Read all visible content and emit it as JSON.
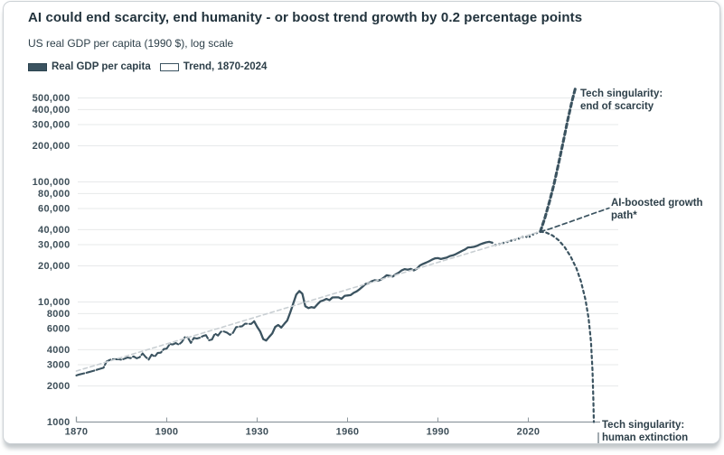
{
  "header": {
    "title": "AI could end scarcity, end humanity - or boost trend growth by 0.2 percentage points",
    "subtitle": "US real GDP per capita (1990 $), log scale"
  },
  "legend": {
    "items": [
      {
        "label": "Real GDP per capita",
        "swatch": "filled",
        "color": "#3b5360"
      },
      {
        "label": "Trend, 1870-2024",
        "swatch": "outlined",
        "color": "#3b5360"
      }
    ]
  },
  "annotations": {
    "scarcity": {
      "line1": "Tech singularity:",
      "line2": "end of scarcity"
    },
    "ai": {
      "line1": "AI-boosted growth",
      "line2": "path*"
    },
    "extinction": {
      "line1": "Tech singularity:",
      "line2": "human extinction"
    }
  },
  "chart_data": {
    "type": "line",
    "title": "AI could end scarcity, end humanity - or boost trend growth by 0.2 percentage points",
    "xlabel": "",
    "ylabel": "US real GDP per capita (1990 $), log scale",
    "y_scale": "log",
    "grid": true,
    "y_axis": {
      "range": [
        1000,
        500000
      ],
      "ticks": [
        {
          "label": "500,000",
          "value": 500000
        },
        {
          "label": "400,000",
          "value": 400000
        },
        {
          "label": "300,000",
          "value": 300000
        },
        {
          "label": "200,000",
          "value": 200000
        },
        {
          "label": "100,000",
          "value": 100000
        },
        {
          "label": "80,000",
          "value": 80000
        },
        {
          "label": "60,000",
          "value": 60000
        },
        {
          "label": "40,000",
          "value": 40000
        },
        {
          "label": "30,000",
          "value": 30000
        },
        {
          "label": "20,000",
          "value": 20000
        },
        {
          "label": "10,000",
          "value": 10000
        },
        {
          "label": "8000",
          "value": 8000
        },
        {
          "label": "6000",
          "value": 6000
        },
        {
          "label": "4000",
          "value": 4000
        },
        {
          "label": "3000",
          "value": 3000
        },
        {
          "label": "2000",
          "value": 2000
        },
        {
          "label": "1000",
          "value": 1000
        }
      ]
    },
    "x_axis": {
      "range": [
        1870,
        2044
      ],
      "ticks": [
        1870,
        1900,
        1930,
        1960,
        1990,
        2020
      ]
    },
    "series": [
      {
        "name": "Real GDP per capita (1870-1929)",
        "style": "s-main-early",
        "points": [
          [
            1870,
            2445
          ],
          [
            1871,
            2489
          ],
          [
            1872,
            2524
          ],
          [
            1873,
            2562
          ],
          [
            1874,
            2601
          ],
          [
            1875,
            2643
          ],
          [
            1876,
            2686
          ],
          [
            1877,
            2732
          ],
          [
            1878,
            2780
          ],
          [
            1879,
            2829
          ],
          [
            1880,
            3184
          ],
          [
            1881,
            3287
          ],
          [
            1882,
            3336
          ],
          [
            1883,
            3338
          ],
          [
            1884,
            3338
          ],
          [
            1885,
            3300
          ],
          [
            1886,
            3374
          ],
          [
            1887,
            3448
          ],
          [
            1888,
            3405
          ],
          [
            1889,
            3523
          ],
          [
            1890,
            3392
          ],
          [
            1891,
            3467
          ],
          [
            1892,
            3728
          ],
          [
            1893,
            3478
          ],
          [
            1894,
            3314
          ],
          [
            1895,
            3644
          ],
          [
            1896,
            3504
          ],
          [
            1897,
            3769
          ],
          [
            1898,
            3780
          ],
          [
            1899,
            4051
          ],
          [
            1900,
            4091
          ],
          [
            1901,
            4464
          ],
          [
            1902,
            4421
          ],
          [
            1903,
            4551
          ],
          [
            1904,
            4410
          ],
          [
            1905,
            4642
          ],
          [
            1906,
            5079
          ],
          [
            1907,
            5065
          ],
          [
            1908,
            4561
          ],
          [
            1909,
            5017
          ],
          [
            1910,
            4964
          ],
          [
            1911,
            5046
          ],
          [
            1912,
            5201
          ],
          [
            1913,
            5301
          ],
          [
            1914,
            4799
          ],
          [
            1915,
            4864
          ],
          [
            1916,
            5459
          ],
          [
            1917,
            5248
          ],
          [
            1918,
            5659
          ],
          [
            1919,
            5680
          ],
          [
            1920,
            5552
          ],
          [
            1921,
            5323
          ],
          [
            1922,
            5540
          ],
          [
            1923,
            6164
          ],
          [
            1924,
            6233
          ],
          [
            1925,
            6282
          ],
          [
            1926,
            6602
          ],
          [
            1927,
            6576
          ],
          [
            1928,
            6569
          ],
          [
            1929,
            6899
          ]
        ]
      },
      {
        "name": "Real GDP per capita (1929-2008)",
        "style": "s-main",
        "points": [
          [
            1929,
            6899
          ],
          [
            1930,
            6213
          ],
          [
            1931,
            5691
          ],
          [
            1932,
            4908
          ],
          [
            1933,
            4777
          ],
          [
            1934,
            5114
          ],
          [
            1935,
            5467
          ],
          [
            1936,
            6204
          ],
          [
            1937,
            6430
          ],
          [
            1938,
            6126
          ],
          [
            1939,
            6561
          ],
          [
            1940,
            7010
          ],
          [
            1941,
            8206
          ],
          [
            1942,
            9741
          ],
          [
            1943,
            11518
          ],
          [
            1944,
            12333
          ],
          [
            1945,
            11709
          ],
          [
            1946,
            9197
          ],
          [
            1947,
            8886
          ],
          [
            1948,
            9065
          ],
          [
            1949,
            8944
          ],
          [
            1950,
            9561
          ],
          [
            1951,
            10116
          ],
          [
            1952,
            10316
          ],
          [
            1953,
            10613
          ],
          [
            1954,
            10359
          ],
          [
            1955,
            10897
          ],
          [
            1956,
            10914
          ],
          [
            1957,
            10920
          ],
          [
            1958,
            10631
          ],
          [
            1959,
            11230
          ],
          [
            1960,
            11328
          ],
          [
            1961,
            11402
          ],
          [
            1962,
            11905
          ],
          [
            1963,
            12242
          ],
          [
            1964,
            12773
          ],
          [
            1965,
            13419
          ],
          [
            1966,
            14134
          ],
          [
            1967,
            14330
          ],
          [
            1968,
            14863
          ],
          [
            1969,
            15179
          ],
          [
            1970,
            15030
          ],
          [
            1971,
            15304
          ],
          [
            1972,
            15944
          ],
          [
            1973,
            16689
          ],
          [
            1974,
            16491
          ],
          [
            1975,
            16284
          ],
          [
            1976,
            16975
          ],
          [
            1977,
            17567
          ],
          [
            1978,
            18373
          ],
          [
            1979,
            18789
          ],
          [
            1980,
            18577
          ],
          [
            1981,
            18856
          ],
          [
            1982,
            18325
          ],
          [
            1983,
            18920
          ],
          [
            1984,
            20123
          ],
          [
            1985,
            20717
          ],
          [
            1986,
            21236
          ],
          [
            1987,
            21788
          ],
          [
            1988,
            22499
          ],
          [
            1989,
            23059
          ],
          [
            1990,
            23201
          ],
          [
            1991,
            22785
          ],
          [
            1992,
            23169
          ],
          [
            1993,
            23477
          ],
          [
            1994,
            24130
          ],
          [
            1995,
            24484
          ],
          [
            1996,
            25066
          ],
          [
            1997,
            25819
          ],
          [
            1998,
            26619
          ],
          [
            1999,
            27395
          ],
          [
            2000,
            28467
          ],
          [
            2001,
            28566
          ],
          [
            2002,
            28797
          ],
          [
            2003,
            29342
          ],
          [
            2004,
            30159
          ],
          [
            2005,
            30830
          ],
          [
            2006,
            31363
          ],
          [
            2007,
            31700
          ],
          [
            2008,
            31178
          ]
        ]
      },
      {
        "name": "Real GDP per capita (2008-2024)",
        "style": "s-main-dotted",
        "points": [
          [
            2008,
            31178
          ],
          [
            2009,
            29800
          ],
          [
            2010,
            30300
          ],
          [
            2011,
            30700
          ],
          [
            2012,
            31200
          ],
          [
            2013,
            31600
          ],
          [
            2014,
            32200
          ],
          [
            2015,
            32900
          ],
          [
            2016,
            33200
          ],
          [
            2017,
            33900
          ],
          [
            2018,
            34700
          ],
          [
            2019,
            35400
          ],
          [
            2020,
            34200
          ],
          [
            2021,
            36100
          ],
          [
            2022,
            36800
          ],
          [
            2023,
            37700
          ],
          [
            2024,
            38600
          ]
        ]
      },
      {
        "name": "Trend, 1870-2024",
        "style": "s-trend",
        "points": [
          [
            1870,
            2660
          ],
          [
            2024,
            38600
          ]
        ]
      },
      {
        "name": "Tech singularity: end of scarcity",
        "style": "s-scarcity",
        "points": [
          [
            2024,
            38600
          ],
          [
            2025.5,
            50000
          ],
          [
            2027,
            68000
          ],
          [
            2028.5,
            95000
          ],
          [
            2030,
            140000
          ],
          [
            2031.5,
            210000
          ],
          [
            2033,
            320000
          ],
          [
            2034.5,
            470000
          ],
          [
            2035.6,
            600000
          ]
        ]
      },
      {
        "name": "AI-boosted growth path*",
        "style": "s-ai",
        "points": [
          [
            2024,
            38600
          ],
          [
            2027,
            40500
          ],
          [
            2030,
            43000
          ],
          [
            2033,
            45700
          ],
          [
            2036,
            48600
          ],
          [
            2039,
            51700
          ],
          [
            2042,
            55000
          ],
          [
            2045,
            58400
          ],
          [
            2046.8,
            60500
          ]
        ]
      },
      {
        "name": "Tech singularity: human extinction",
        "style": "s-extinction",
        "points": [
          [
            2024,
            38600
          ],
          [
            2026,
            37800
          ],
          [
            2028,
            35800
          ],
          [
            2030,
            32800
          ],
          [
            2032,
            28800
          ],
          [
            2034,
            24000
          ],
          [
            2036,
            19000
          ],
          [
            2037.5,
            14800
          ],
          [
            2039,
            10400
          ],
          [
            2040,
            7300
          ],
          [
            2040.8,
            4700
          ],
          [
            2041.3,
            2700
          ],
          [
            2041.6,
            1500
          ],
          [
            2041.75,
            1000
          ]
        ]
      }
    ]
  }
}
